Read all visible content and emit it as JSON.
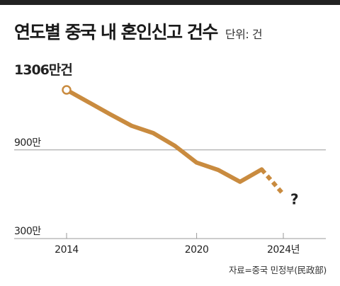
{
  "header": {
    "title": "연도별 중국 내 혼인신고 건수",
    "unit": "단위: 건"
  },
  "source": "자료=중국 민정부(民政部)",
  "colors": {
    "line": "#c98b3f",
    "grid": "#9a9a9a",
    "text": "#222222"
  },
  "chart_data": {
    "type": "line",
    "title": "연도별 중국 내 혼인신고 건수",
    "ylabels_text": [
      "1306만건",
      "900만",
      "300만"
    ],
    "yticks": [
      1306,
      900,
      300
    ],
    "ylim": [
      300,
      1306
    ],
    "xlim": [
      2014,
      2024
    ],
    "xticks": [
      2014,
      2020,
      2024
    ],
    "xtick_labels": [
      "2014",
      "2020",
      "2024년"
    ],
    "series": [
      {
        "style": "solid",
        "x": [
          2014,
          2015,
          2016,
          2017,
          2018,
          2019,
          2020,
          2021,
          2022,
          2023
        ],
        "y": [
          1306,
          1224,
          1142,
          1063,
          1014,
          927,
          814,
          764,
          684,
          768
        ]
      },
      {
        "style": "dashed",
        "x": [
          2023,
          2024
        ],
        "y": [
          768,
          600
        ]
      }
    ],
    "annotation": {
      "x": 2024,
      "y": 600,
      "text": "?"
    }
  }
}
